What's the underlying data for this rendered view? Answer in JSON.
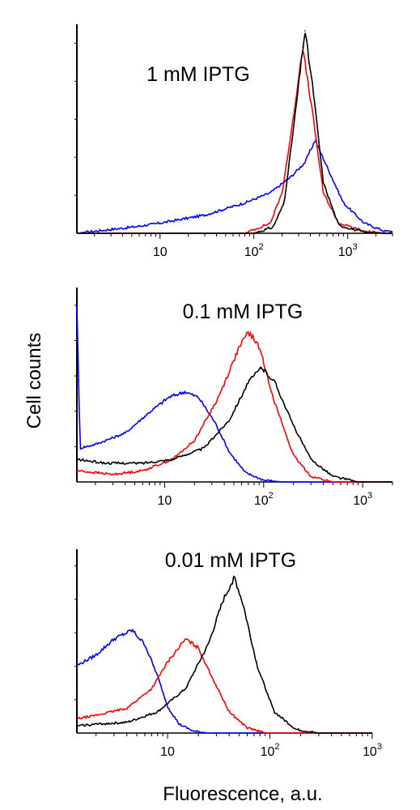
{
  "ylabel": "Cell counts",
  "xlabel": "Fluorescence, a.u.",
  "series_colors": [
    "#0000ff",
    "#ff0000",
    "#000000"
  ],
  "chart_data": [
    {
      "type": "line",
      "title": "1 mM IPTG",
      "x_scale": "log",
      "xlim": [
        1.3,
        3000
      ],
      "ylim": [
        0,
        1.0
      ],
      "xticks": [
        {
          "value": 10,
          "base": "10",
          "exp": ""
        },
        {
          "value": 100,
          "base": "10",
          "exp": "2"
        },
        {
          "value": 1000,
          "base": "10",
          "exp": "3"
        }
      ],
      "series": [
        {
          "color": "#0000ff",
          "peak_x": 450,
          "peak_y": 0.46,
          "points": [
            [
              1.3,
              0
            ],
            [
              2,
              0.01
            ],
            [
              5,
              0.03
            ],
            [
              10,
              0.05
            ],
            [
              30,
              0.09
            ],
            [
              80,
              0.15
            ],
            [
              150,
              0.2
            ],
            [
              250,
              0.28
            ],
            [
              350,
              0.35
            ],
            [
              450,
              0.46
            ],
            [
              600,
              0.33
            ],
            [
              900,
              0.15
            ],
            [
              1500,
              0.05
            ],
            [
              2500,
              0.01
            ]
          ]
        },
        {
          "color": "#ff0000",
          "peak_x": 330,
          "peak_y": 0.92,
          "points": [
            [
              1.3,
              0
            ],
            [
              80,
              0
            ],
            [
              150,
              0.05
            ],
            [
              200,
              0.2
            ],
            [
              260,
              0.55
            ],
            [
              330,
              0.92
            ],
            [
              420,
              0.6
            ],
            [
              550,
              0.2
            ],
            [
              800,
              0.05
            ],
            [
              1500,
              0.01
            ],
            [
              2500,
              0
            ]
          ]
        },
        {
          "color": "#000000",
          "peak_x": 350,
          "peak_y": 1.0,
          "points": [
            [
              1.3,
              0
            ],
            [
              100,
              0
            ],
            [
              160,
              0.03
            ],
            [
              210,
              0.15
            ],
            [
              270,
              0.55
            ],
            [
              350,
              1.0
            ],
            [
              430,
              0.7
            ],
            [
              550,
              0.25
            ],
            [
              800,
              0.04
            ],
            [
              1500,
              0.005
            ],
            [
              2500,
              0
            ]
          ]
        }
      ]
    },
    {
      "type": "line",
      "title": "0.1 mM IPTG",
      "x_scale": "log",
      "xlim": [
        1.3,
        2000
      ],
      "ylim": [
        0,
        1.0
      ],
      "xticks": [
        {
          "value": 10,
          "base": "10",
          "exp": ""
        },
        {
          "value": 100,
          "base": "10",
          "exp": "2"
        },
        {
          "value": 1000,
          "base": "10",
          "exp": "3"
        }
      ],
      "series": [
        {
          "color": "#0000ff",
          "peak_x": 16,
          "peak_y": 0.48,
          "points": [
            [
              1.3,
              0.95
            ],
            [
              1.4,
              0.18
            ],
            [
              2,
              0.2
            ],
            [
              4,
              0.26
            ],
            [
              7,
              0.37
            ],
            [
              11,
              0.45
            ],
            [
              16,
              0.48
            ],
            [
              22,
              0.45
            ],
            [
              32,
              0.32
            ],
            [
              45,
              0.16
            ],
            [
              65,
              0.05
            ],
            [
              100,
              0.01
            ],
            [
              150,
              0
            ]
          ]
        },
        {
          "color": "#ff0000",
          "peak_x": 70,
          "peak_y": 0.8,
          "points": [
            [
              1.3,
              0.06
            ],
            [
              3,
              0.04
            ],
            [
              6,
              0.06
            ],
            [
              12,
              0.12
            ],
            [
              20,
              0.22
            ],
            [
              35,
              0.45
            ],
            [
              55,
              0.7
            ],
            [
              70,
              0.8
            ],
            [
              90,
              0.72
            ],
            [
              130,
              0.42
            ],
            [
              200,
              0.14
            ],
            [
              300,
              0.03
            ],
            [
              500,
              0
            ]
          ]
        },
        {
          "color": "#000000",
          "peak_x": 95,
          "peak_y": 0.61,
          "points": [
            [
              1.3,
              0.12
            ],
            [
              2.5,
              0.1
            ],
            [
              6,
              0.1
            ],
            [
              12,
              0.12
            ],
            [
              25,
              0.18
            ],
            [
              45,
              0.33
            ],
            [
              70,
              0.53
            ],
            [
              95,
              0.61
            ],
            [
              130,
              0.53
            ],
            [
              200,
              0.3
            ],
            [
              300,
              0.12
            ],
            [
              500,
              0.03
            ],
            [
              900,
              0
            ]
          ]
        }
      ]
    },
    {
      "type": "line",
      "title": "0.01 mM IPTG",
      "x_scale": "log",
      "xlim": [
        1.3,
        1000
      ],
      "ylim": [
        0,
        1.0
      ],
      "xticks": [
        {
          "value": 10,
          "base": "10",
          "exp": ""
        },
        {
          "value": 100,
          "base": "10",
          "exp": "2"
        },
        {
          "value": 1000,
          "base": "10",
          "exp": "3"
        }
      ],
      "series": [
        {
          "color": "#0000ff",
          "peak_x": 4.5,
          "peak_y": 0.58,
          "points": [
            [
              1.3,
              0.38
            ],
            [
              2,
              0.44
            ],
            [
              3,
              0.53
            ],
            [
              4.5,
              0.58
            ],
            [
              6,
              0.5
            ],
            [
              8,
              0.32
            ],
            [
              10,
              0.15
            ],
            [
              13,
              0.05
            ],
            [
              18,
              0.01
            ],
            [
              25,
              0
            ]
          ]
        },
        {
          "color": "#ff0000",
          "peak_x": 15,
          "peak_y": 0.53,
          "points": [
            [
              1.3,
              0.08
            ],
            [
              2,
              0.1
            ],
            [
              4,
              0.14
            ],
            [
              7,
              0.25
            ],
            [
              10,
              0.4
            ],
            [
              15,
              0.53
            ],
            [
              20,
              0.48
            ],
            [
              28,
              0.3
            ],
            [
              40,
              0.12
            ],
            [
              60,
              0.03
            ],
            [
              90,
              0
            ]
          ]
        },
        {
          "color": "#000000",
          "peak_x": 45,
          "peak_y": 0.88,
          "points": [
            [
              1.3,
              0.04
            ],
            [
              2,
              0.05
            ],
            [
              4,
              0.06
            ],
            [
              8,
              0.12
            ],
            [
              15,
              0.25
            ],
            [
              25,
              0.5
            ],
            [
              35,
              0.75
            ],
            [
              45,
              0.88
            ],
            [
              55,
              0.72
            ],
            [
              75,
              0.38
            ],
            [
              110,
              0.12
            ],
            [
              180,
              0.02
            ],
            [
              300,
              0
            ]
          ]
        }
      ]
    }
  ]
}
